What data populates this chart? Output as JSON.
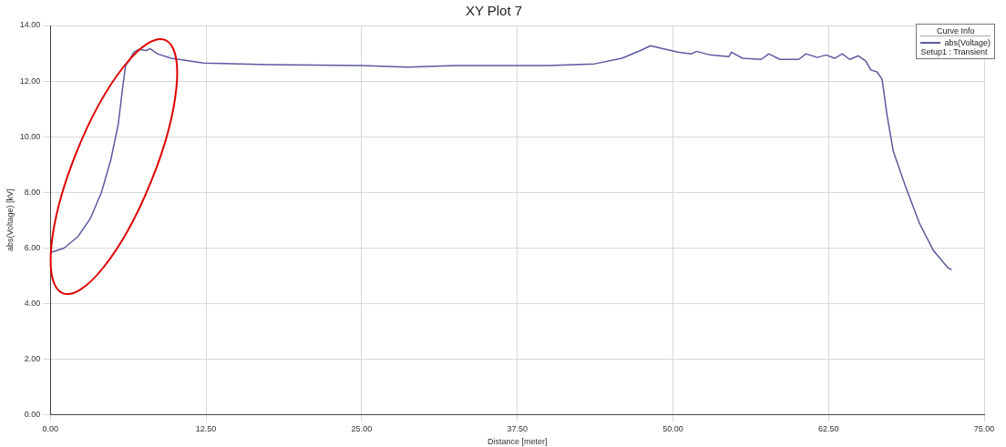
{
  "chart_data": {
    "type": "line",
    "title": "XY Plot 7",
    "xlabel": "Distance [meter]",
    "ylabel": "abs(Voltage) [kV]",
    "legend_title": "Curve Info",
    "annotations": [
      "Setup1 : Transient"
    ],
    "xlim": [
      0,
      75
    ],
    "xticks": [
      {
        "value": 0,
        "label": "0.00"
      },
      {
        "value": 12.5,
        "label": "12.50"
      },
      {
        "value": 25,
        "label": "25.00"
      },
      {
        "value": 37.5,
        "label": "37.50"
      },
      {
        "value": 50,
        "label": "50.00"
      },
      {
        "value": 62.5,
        "label": "62.50"
      },
      {
        "value": 75,
        "label": "75.00"
      }
    ],
    "ylim": [
      0,
      14
    ],
    "yticks": [
      {
        "value": 0,
        "label": "0.00"
      },
      {
        "value": 2,
        "label": "2.00"
      },
      {
        "value": 4,
        "label": "4.00"
      },
      {
        "value": 6,
        "label": "6.00"
      },
      {
        "value": 8,
        "label": "8.00"
      },
      {
        "value": 10,
        "label": "10.00"
      },
      {
        "value": 12,
        "label": "12.00"
      },
      {
        "value": 14,
        "label": "14.00"
      }
    ],
    "grid": true,
    "legend": "top right",
    "marker": "none",
    "line_style": "solid",
    "series": [
      {
        "name": "abs(Voltage)",
        "color": "#5a5aa0",
        "x": [
          0,
          1.1,
          2.2,
          3.2,
          4.1,
          4.85,
          5.45,
          5.8,
          6.04,
          6.3,
          6.7,
          7.1,
          7.7,
          8.0,
          8.6,
          9.7,
          12.3,
          17.5,
          25,
          28.7,
          32.5,
          40,
          43.7,
          45.9,
          47.4,
          48.2,
          48.9,
          50.4,
          51.5,
          51.9,
          53,
          54.5,
          54.7,
          55.6,
          57.1,
          57.7,
          58.6,
          60.1,
          60.7,
          61.6,
          62.3,
          63,
          63.6,
          64.2,
          64.9,
          65.5,
          65.9,
          66.4,
          66.8,
          67.2,
          67.7,
          68.7,
          69.8,
          70.9,
          72.1,
          72.4
        ],
        "values": [
          5.83,
          5.99,
          6.4,
          7.05,
          8.0,
          9.16,
          10.45,
          11.75,
          12.56,
          12.72,
          13.04,
          13.14,
          13.1,
          13.17,
          12.98,
          12.82,
          12.65,
          12.59,
          12.56,
          12.5,
          12.56,
          12.56,
          12.62,
          12.82,
          13.1,
          13.27,
          13.2,
          13.04,
          12.98,
          13.07,
          12.94,
          12.88,
          13.04,
          12.82,
          12.78,
          12.98,
          12.78,
          12.78,
          12.98,
          12.85,
          12.94,
          12.82,
          12.98,
          12.78,
          12.91,
          12.72,
          12.4,
          12.33,
          12.07,
          10.78,
          9.48,
          8.19,
          6.89,
          5.92,
          5.28,
          5.21
        ]
      }
    ]
  }
}
